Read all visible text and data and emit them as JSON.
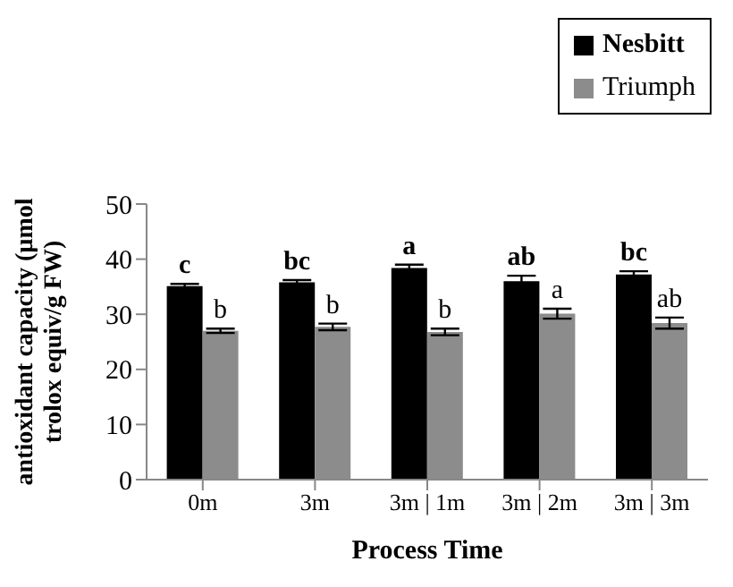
{
  "chart_data": {
    "type": "bar",
    "xlabel": "Process Time",
    "ylabel": "antioxidant  capacity (µmol trolox equiv/g FW)",
    "categories": [
      "0m",
      "3m",
      "3m | 1m",
      "3m | 2m",
      "3m | 3m"
    ],
    "series": [
      {
        "name": "Nesbitt",
        "color": "#000000",
        "values": [
          35.1,
          35.8,
          38.4,
          36.0,
          37.2
        ],
        "errors": [
          0.4,
          0.4,
          0.6,
          1.0,
          0.6
        ],
        "value_labels": [
          "c",
          "bc",
          "a",
          "ab",
          "bc"
        ]
      },
      {
        "name": "Triumph",
        "color": "#8c8c8c",
        "values": [
          27.0,
          27.7,
          26.8,
          30.1,
          28.4
        ],
        "errors": [
          0.4,
          0.6,
          0.6,
          0.9,
          1.0
        ],
        "value_labels": [
          "b",
          "b",
          "b",
          "a",
          "ab"
        ]
      }
    ],
    "ylim": [
      0,
      50
    ],
    "yticks": [
      0,
      10,
      20,
      30,
      40,
      50
    ],
    "grid": false,
    "legend": "top right"
  }
}
